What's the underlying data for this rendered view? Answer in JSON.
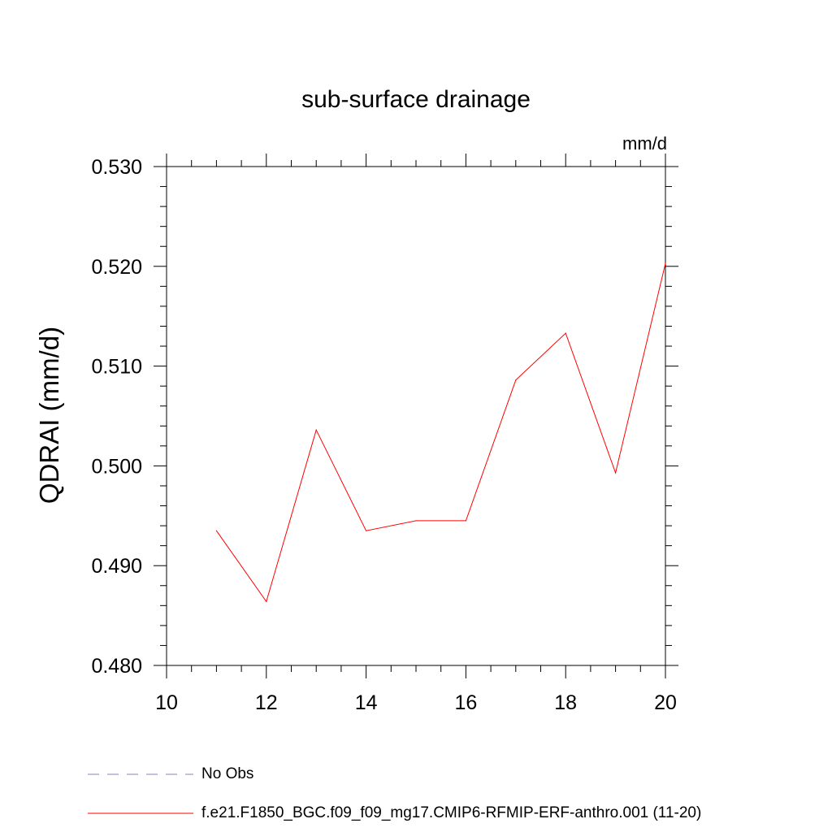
{
  "chart_data": {
    "type": "line",
    "title": "sub-surface drainage",
    "units_label": "mm/d",
    "ylabel": "QDRAI  (mm/d)",
    "xlabel": "",
    "xlim": [
      10,
      20
    ],
    "ylim": [
      0.48,
      0.53
    ],
    "x_ticks": [
      10,
      12,
      14,
      16,
      18,
      20
    ],
    "x_tick_labels": [
      "10",
      "12",
      "14",
      "16",
      "18",
      "20"
    ],
    "y_ticks": [
      0.48,
      0.49,
      0.5,
      0.51,
      0.52,
      0.53
    ],
    "y_tick_labels": [
      "0.480",
      "0.490",
      "0.500",
      "0.510",
      "0.520",
      "0.530"
    ],
    "grid": false,
    "legend_position": "bottom-left",
    "series": [
      {
        "name": "f.e21.F1850_BGC.f09_f09_mg17.CMIP6-RFMIP-ERF-anthro.001 (11-20)",
        "color": "#ff0000",
        "x": [
          11,
          12,
          13,
          14,
          15,
          16,
          17,
          18,
          19,
          20
        ],
        "y": [
          0.4935,
          0.4864,
          0.5036,
          0.4935,
          0.4945,
          0.4945,
          0.5086,
          0.5133,
          0.4993,
          0.5203
        ]
      }
    ],
    "legend": [
      {
        "label": "No Obs",
        "color": "#8a7fc0",
        "style": "dashed"
      },
      {
        "label": "f.e21.F1850_BGC.f09_f09_mg17.CMIP6-RFMIP-ERF-anthro.001 (11-20)",
        "color": "#ff0000",
        "style": "solid"
      }
    ]
  }
}
